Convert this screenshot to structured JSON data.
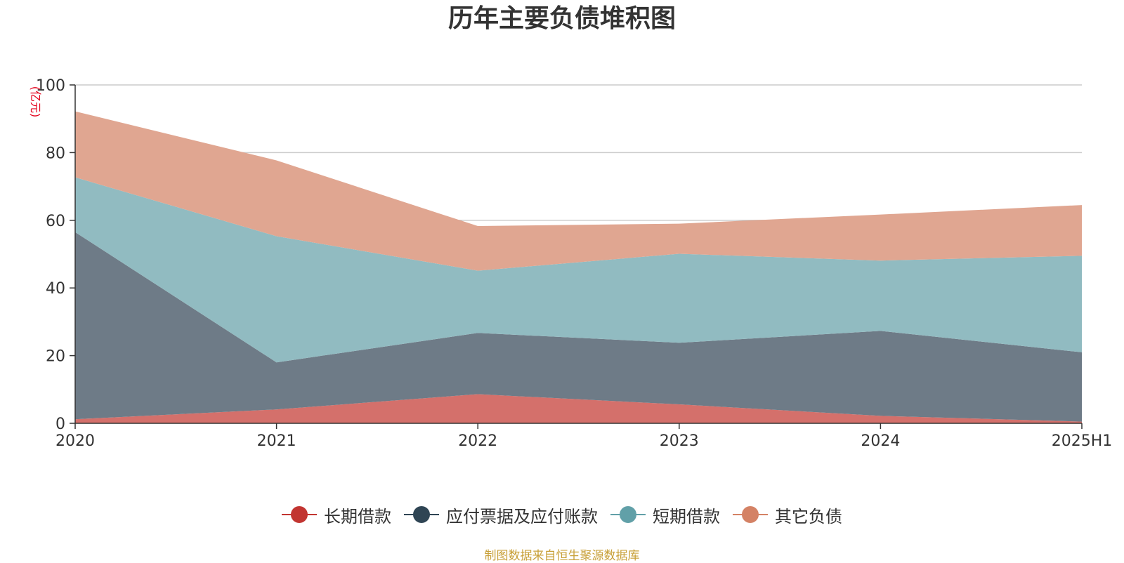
{
  "chart_data": {
    "type": "area",
    "stacked": true,
    "title": "历年主要负债堆积图",
    "ylabel": "(亿元)",
    "xlabel": "",
    "categories": [
      "2020",
      "2021",
      "2022",
      "2023",
      "2024",
      "2025H1"
    ],
    "ylim": [
      0,
      100
    ],
    "yticks": [
      0,
      20,
      40,
      60,
      80,
      100
    ],
    "grid": true,
    "legend_position": "bottom",
    "series": [
      {
        "name": "长期借款",
        "color": "#c23531",
        "fill": "#d4706b",
        "values": [
          1.2,
          4.1,
          8.6,
          5.6,
          2.2,
          0.5
        ]
      },
      {
        "name": "应付票据及应付账款",
        "color": "#2f4554",
        "fill": "#6e7b87",
        "values": [
          55.3,
          13.9,
          18.1,
          18.2,
          25.1,
          20.5
        ]
      },
      {
        "name": "短期借款",
        "color": "#61a0a8",
        "fill": "#91bbc1",
        "values": [
          16.2,
          37.3,
          18.4,
          26.3,
          20.8,
          28.5
        ]
      },
      {
        "name": "其它负债",
        "color": "#d48265",
        "fill": "#e0a691",
        "values": [
          19.5,
          22.4,
          13.2,
          8.9,
          13.6,
          15.0
        ]
      }
    ]
  },
  "source": "制图数据来自恒生聚源数据库"
}
